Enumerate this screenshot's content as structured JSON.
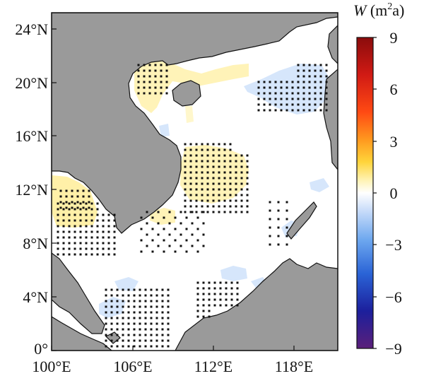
{
  "map": {
    "type": "heatmap",
    "region": "South China Sea",
    "x_axis": {
      "ticks": [
        "100°E",
        "106°E",
        "112°E",
        "118°E"
      ],
      "range": [
        100,
        121
      ]
    },
    "y_axis": {
      "ticks": [
        "24°N",
        "20°N",
        "16°N",
        "12°N",
        "8°N",
        "4°N",
        "0°"
      ],
      "range": [
        0,
        25.5
      ]
    },
    "colorbar": {
      "title_main": "W",
      "title_unit_open": " (m",
      "title_sup": "2",
      "title_unit_close": "a)",
      "ticks": [
        "9",
        "6",
        "3",
        "0",
        "−3",
        "−6",
        "−9"
      ],
      "range": [
        -9,
        9
      ],
      "colors": [
        "#5b1f7a",
        "#1c1f9c",
        "#2a63d6",
        "#6ea8ef",
        "#cfe0fa",
        "#ffffff",
        "#fff3b5",
        "#ffd43a",
        "#ff9a1f",
        "#ff4a13",
        "#d11a14",
        "#8a0c0c"
      ]
    },
    "colors": {
      "land": "#9a9a9a",
      "sea": "#ffffff",
      "positive": "#fff3b8",
      "negative": "#d6e6fb",
      "stipple": "#111111"
    }
  }
}
